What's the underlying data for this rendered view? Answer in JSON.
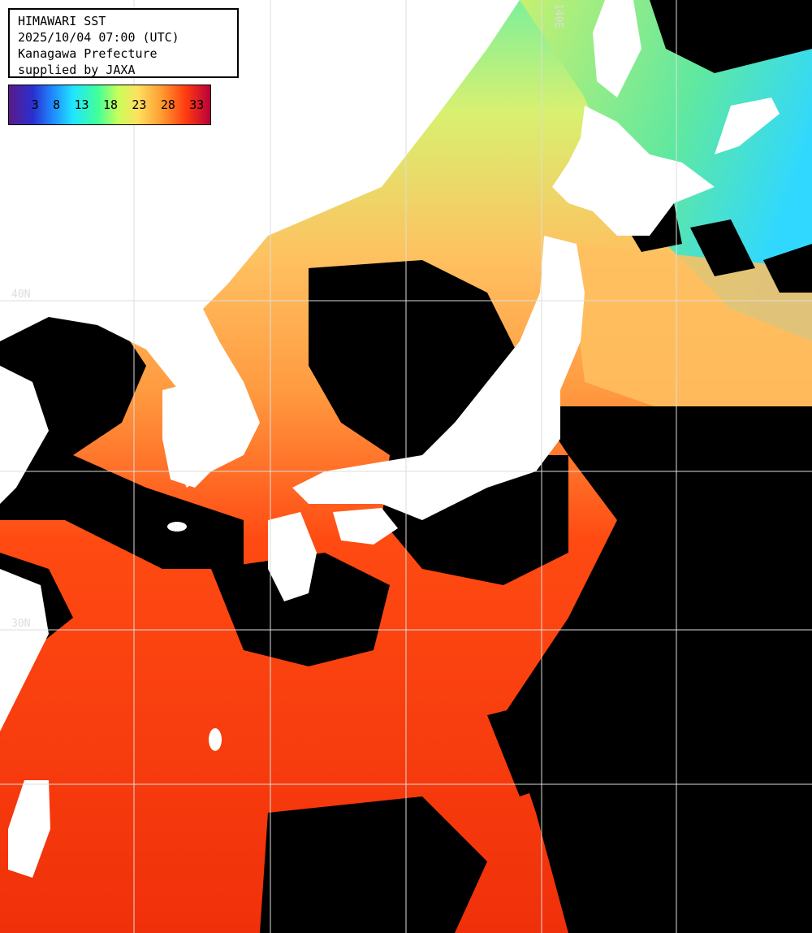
{
  "title_block": {
    "line1": "HIMAWARI SST",
    "line2": "2025/10/04 07:00 (UTC)",
    "line3": "Kanagawa Prefecture",
    "line4": "supplied by JAXA"
  },
  "colorbar": {
    "ticks": [
      "3",
      "8",
      "13",
      "18",
      "23",
      "28",
      "33"
    ]
  },
  "grid_labels": {
    "lat_40": "40N",
    "lat_30": "30N",
    "lon_140": "140E"
  },
  "colors": {
    "land": "#ffffff",
    "cloud": "#000000",
    "sst_cold": "#30d8ff",
    "sst_cool": "#8ff07a",
    "sst_mild": "#e8f070",
    "sst_warm": "#ffb060",
    "sst_hot": "#ff4a10",
    "grid": "#dddddd"
  }
}
